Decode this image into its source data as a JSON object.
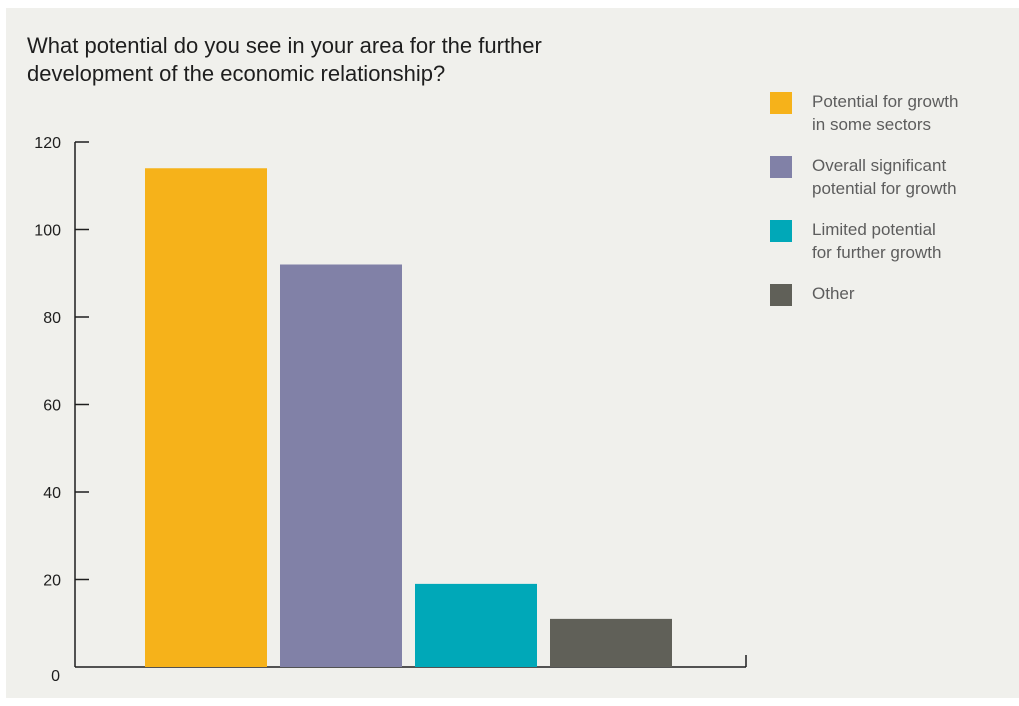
{
  "chart_data": {
    "type": "bar",
    "title": "What potential do you see in your area for the further development of the economic relationship?",
    "xlabel": "",
    "ylabel": "",
    "categories": [
      "Potential for growth in some sectors",
      "Overall significant potential for growth",
      "Limited potential for further growth",
      "Other"
    ],
    "values": [
      114,
      92,
      19,
      11
    ],
    "colors": [
      "#f6b21a",
      "#8181a7",
      "#00a8b8",
      "#606058"
    ],
    "ylim": [
      0,
      120
    ],
    "yticks": [
      0,
      20,
      40,
      60,
      80,
      100,
      120
    ],
    "grid": false,
    "legend_position": "top-right"
  },
  "legend": {
    "items": [
      {
        "line1": "Potential for growth",
        "line2": "in some sectors",
        "color": "#f6b21a"
      },
      {
        "line1": "Overall significant",
        "line2": "potential for growth",
        "color": "#8181a7"
      },
      {
        "line1": "Limited potential",
        "line2": "for further growth",
        "color": "#00a8b8"
      },
      {
        "line1": "Other",
        "line2": "",
        "color": "#606058"
      }
    ]
  }
}
